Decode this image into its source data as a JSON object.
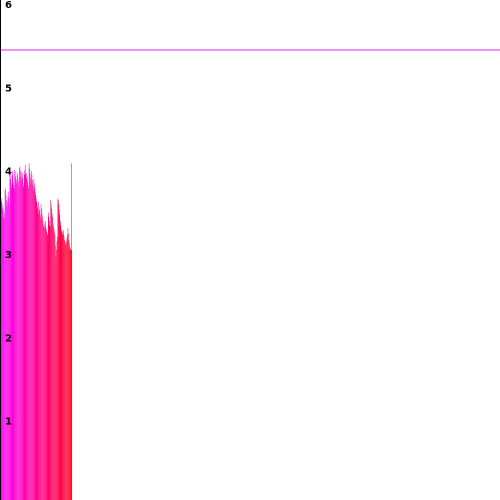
{
  "chart_data": {
    "type": "bar",
    "title": "",
    "xlabel": "",
    "ylabel": "",
    "ylim": [
      0,
      6
    ],
    "yticks": [
      "1",
      "2",
      "3",
      "4",
      "5",
      "6"
    ],
    "x_extent_bars": 150,
    "values": [
      3.65,
      3.68,
      3.62,
      3.58,
      3.5,
      3.55,
      3.48,
      3.4,
      3.38,
      3.45,
      3.72,
      3.74,
      3.66,
      3.6,
      3.52,
      3.58,
      3.64,
      3.7,
      3.62,
      3.55,
      3.98,
      3.92,
      3.85,
      3.8,
      3.75,
      3.95,
      3.9,
      3.82,
      3.78,
      3.74,
      3.96,
      3.94,
      3.88,
      3.84,
      3.8,
      3.93,
      3.9,
      3.86,
      3.82,
      3.76,
      3.98,
      4.0,
      3.95,
      3.88,
      3.84,
      3.94,
      3.92,
      3.86,
      3.8,
      3.76,
      3.9,
      3.96,
      4.02,
      3.92,
      3.86,
      3.92,
      3.88,
      3.82,
      3.78,
      3.74,
      4.04,
      3.98,
      3.92,
      3.86,
      3.8,
      3.95,
      3.9,
      3.84,
      3.78,
      3.72,
      3.85,
      3.8,
      3.75,
      3.7,
      3.66,
      3.62,
      3.58,
      3.55,
      3.5,
      3.44,
      3.58,
      3.52,
      3.48,
      3.42,
      3.38,
      3.55,
      3.5,
      3.44,
      3.4,
      3.35,
      3.3,
      3.28,
      3.26,
      3.32,
      3.35,
      3.28,
      3.25,
      3.22,
      3.2,
      3.18,
      3.45,
      3.4,
      3.35,
      3.3,
      3.28,
      3.6,
      3.56,
      3.5,
      3.44,
      3.4,
      3.32,
      3.28,
      3.25,
      3.22,
      3.18,
      3.05,
      2.92,
      3.0,
      3.1,
      3.15,
      3.62,
      3.6,
      3.55,
      3.48,
      3.42,
      3.35,
      3.3,
      3.25,
      3.22,
      3.18,
      3.22,
      3.24,
      3.2,
      3.16,
      3.12,
      3.1,
      3.08,
      3.06,
      3.1,
      3.14,
      3.18,
      3.26,
      3.2,
      3.12,
      3.08,
      3.04,
      3.02,
      3.0,
      4.04,
      3.0
    ],
    "reference_line": {
      "value": 5.4,
      "color": "#ee22ee"
    },
    "colors": {
      "bar_start": "#ff00ff",
      "bar_end": "#ff0022",
      "axis": "#000000",
      "background": "#ffffff"
    },
    "grid": false,
    "legend": "none"
  }
}
